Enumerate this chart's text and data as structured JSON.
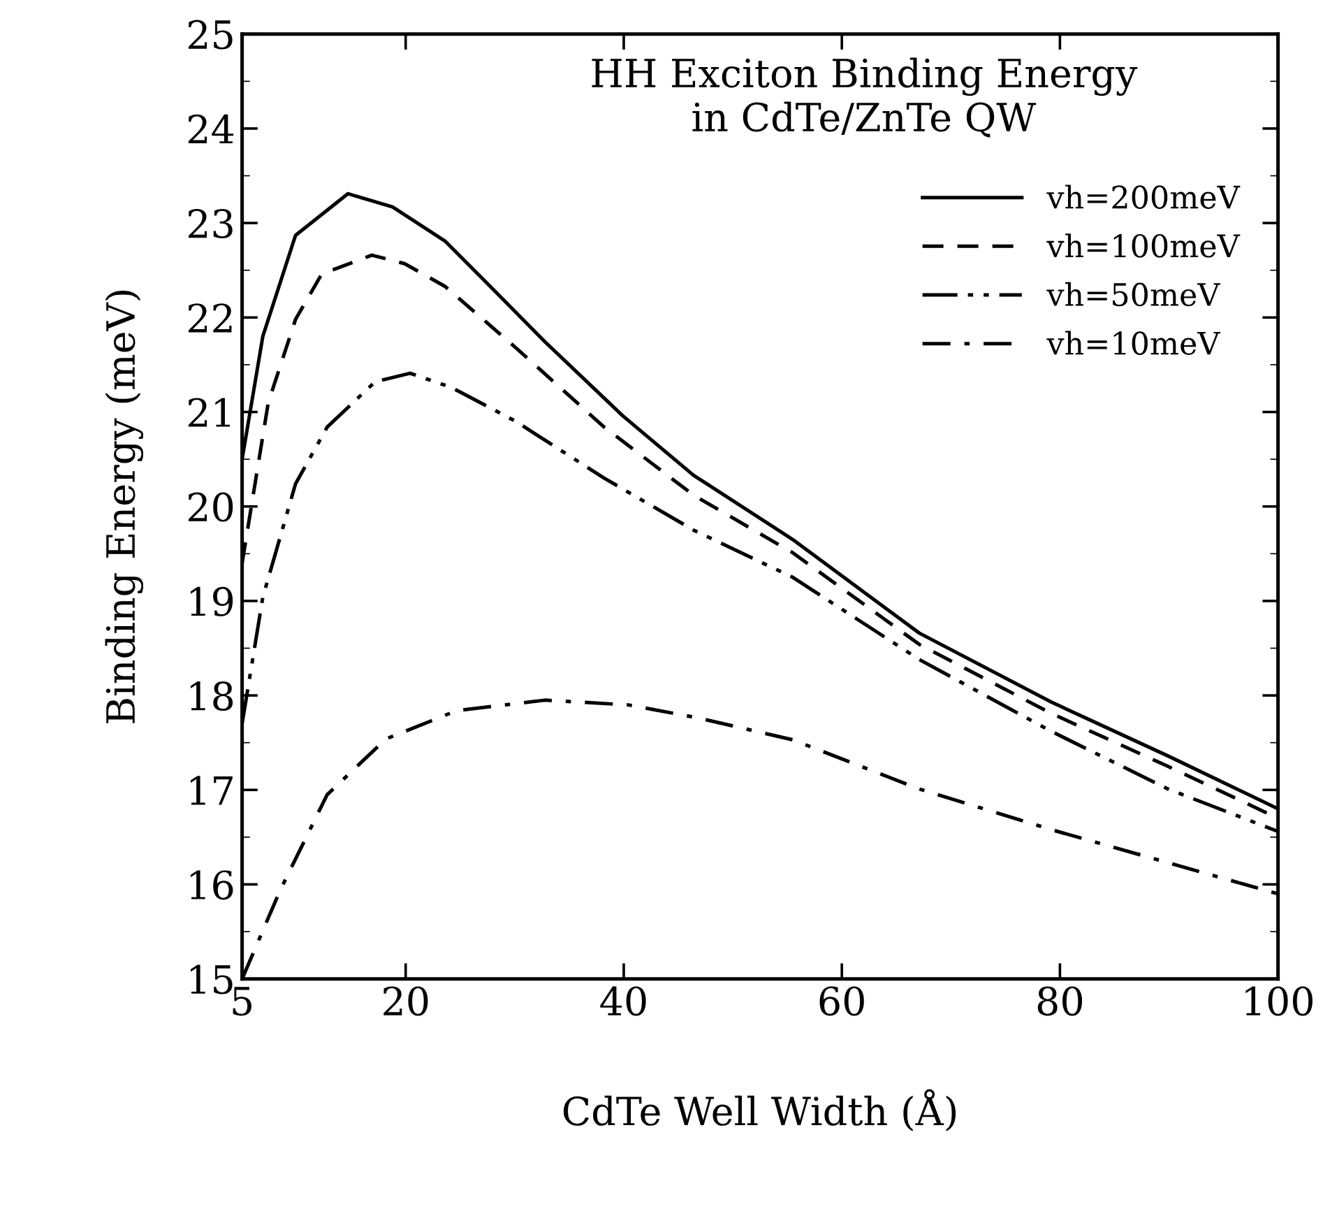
{
  "chart_data": {
    "type": "line",
    "title": "HH Exciton Binding Energy\nin CdTe/ZnTe QW",
    "xlabel": "CdTe Well Width (Å)",
    "ylabel": "Binding Energy (meV)",
    "xlim": [
      5,
      100
    ],
    "ylim": [
      15,
      25
    ],
    "xticks": [
      5,
      20,
      40,
      60,
      80,
      100
    ],
    "yticks": [
      15,
      16,
      17,
      18,
      19,
      20,
      21,
      22,
      23,
      24,
      25
    ],
    "grid": false,
    "legend": "top right",
    "series": [
      {
        "name": "vh=200meV",
        "color": "#000000",
        "line_style": "solid",
        "x": [
          5,
          6.9,
          9.9,
          14.7,
          18.8,
          23.6,
          27.4,
          32.8,
          39.9,
          46.4,
          55.5,
          67.1,
          79.2,
          89.9,
          100
        ],
        "values": [
          20.5,
          21.8,
          22.87,
          23.31,
          23.17,
          22.81,
          22.37,
          21.74,
          20.96,
          20.33,
          19.65,
          18.66,
          17.93,
          17.36,
          16.8
        ]
      },
      {
        "name": "vh=100meV",
        "color": "#000000",
        "line_style": "dashed",
        "x": [
          5,
          7.4,
          9.9,
          12.3,
          16.9,
          19.9,
          23.6,
          30.1,
          38.2,
          46.4,
          55.5,
          67.1,
          79.2,
          89.9,
          100
        ],
        "values": [
          19.4,
          21.1,
          21.98,
          22.46,
          22.66,
          22.57,
          22.33,
          21.68,
          20.84,
          20.12,
          19.51,
          18.54,
          17.81,
          17.25,
          16.7
        ]
      },
      {
        "name": "vh=50meV",
        "color": "#000000",
        "line_style": "dashdotdot",
        "x": [
          5,
          6.9,
          9.9,
          12.8,
          17.2,
          20.4,
          24.2,
          30.1,
          38.2,
          46.4,
          55.5,
          67.1,
          79.2,
          89.9,
          100
        ],
        "values": [
          17.7,
          19.04,
          20.24,
          20.84,
          21.32,
          21.41,
          21.26,
          20.9,
          20.3,
          19.75,
          19.25,
          18.38,
          17.62,
          17.01,
          16.56
        ]
      },
      {
        "name": "vh=10meV",
        "color": "#000000",
        "line_style": "dashdot",
        "x": [
          5,
          8.5,
          12.8,
          18.2,
          24.7,
          32.8,
          40.4,
          46.9,
          55.5,
          67.1,
          79.2,
          89.9,
          100
        ],
        "values": [
          15.0,
          15.94,
          16.95,
          17.54,
          17.84,
          17.95,
          17.9,
          17.76,
          17.53,
          17.01,
          16.58,
          16.23,
          15.9
        ]
      }
    ]
  }
}
